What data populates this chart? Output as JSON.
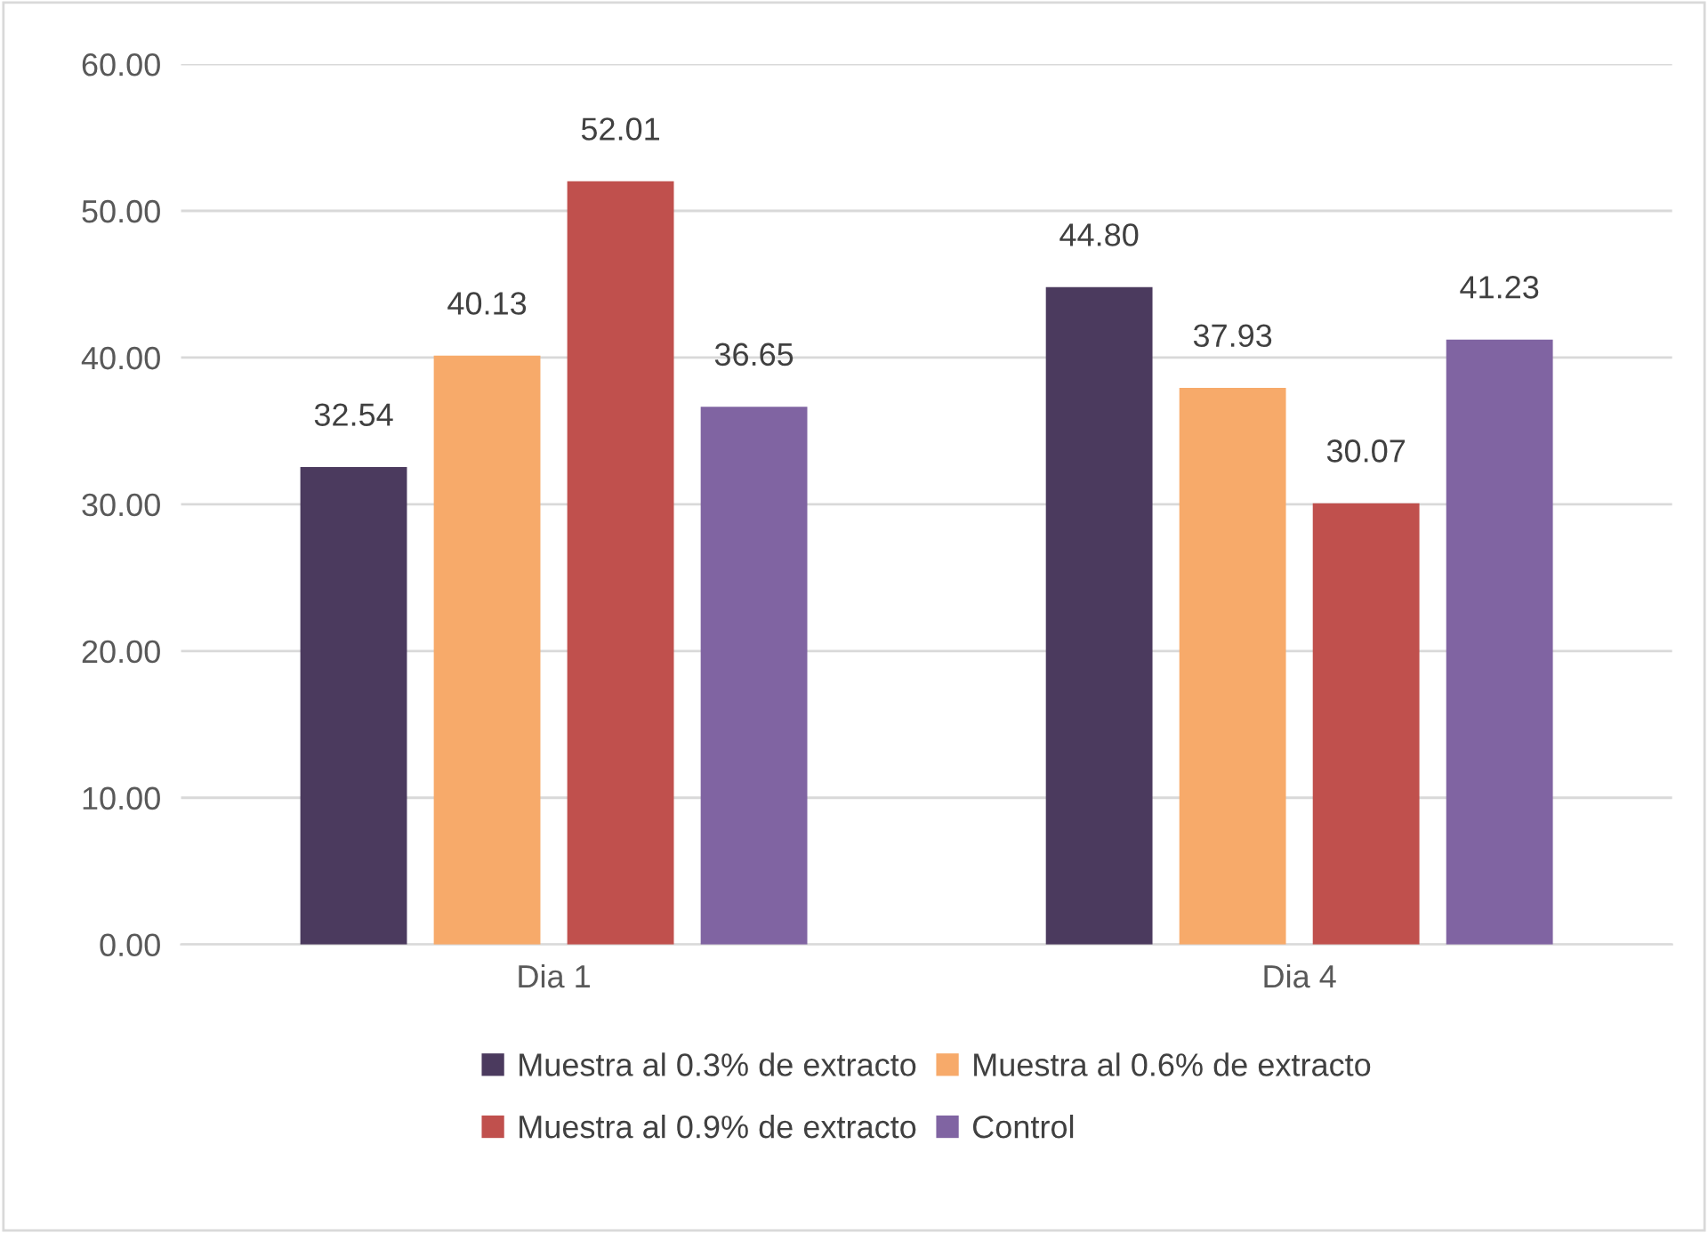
{
  "chart_data": {
    "type": "bar",
    "categories": [
      "Dia 1",
      "Dia 4"
    ],
    "series": [
      {
        "name": "Muestra al 0.3% de extracto",
        "color": "#4b3a5e",
        "values": [
          32.54,
          44.8
        ],
        "value_labels": [
          "32.54",
          "44.80"
        ]
      },
      {
        "name": "Muestra al 0.6% de extracto",
        "color": "#f7aa6a",
        "values": [
          40.13,
          37.93
        ],
        "value_labels": [
          "40.13",
          "37.93"
        ]
      },
      {
        "name": "Muestra al 0.9% de extracto",
        "color": "#c0504d",
        "values": [
          52.01,
          30.07
        ],
        "value_labels": [
          "52.01",
          "30.07"
        ]
      },
      {
        "name": "Control",
        "color": "#8064a2",
        "values": [
          36.65,
          41.23
        ],
        "value_labels": [
          "36.65",
          "41.23"
        ]
      }
    ],
    "ylim": [
      0,
      60
    ],
    "yticks": [
      {
        "value": 0,
        "label": "0.00"
      },
      {
        "value": 10,
        "label": "10.00"
      },
      {
        "value": 20,
        "label": "20.00"
      },
      {
        "value": 30,
        "label": "30.00"
      },
      {
        "value": 40,
        "label": "40.00"
      },
      {
        "value": 50,
        "label": "50.00"
      },
      {
        "value": 60,
        "label": "60.00"
      }
    ],
    "grid": "y",
    "legend": "bottom"
  }
}
